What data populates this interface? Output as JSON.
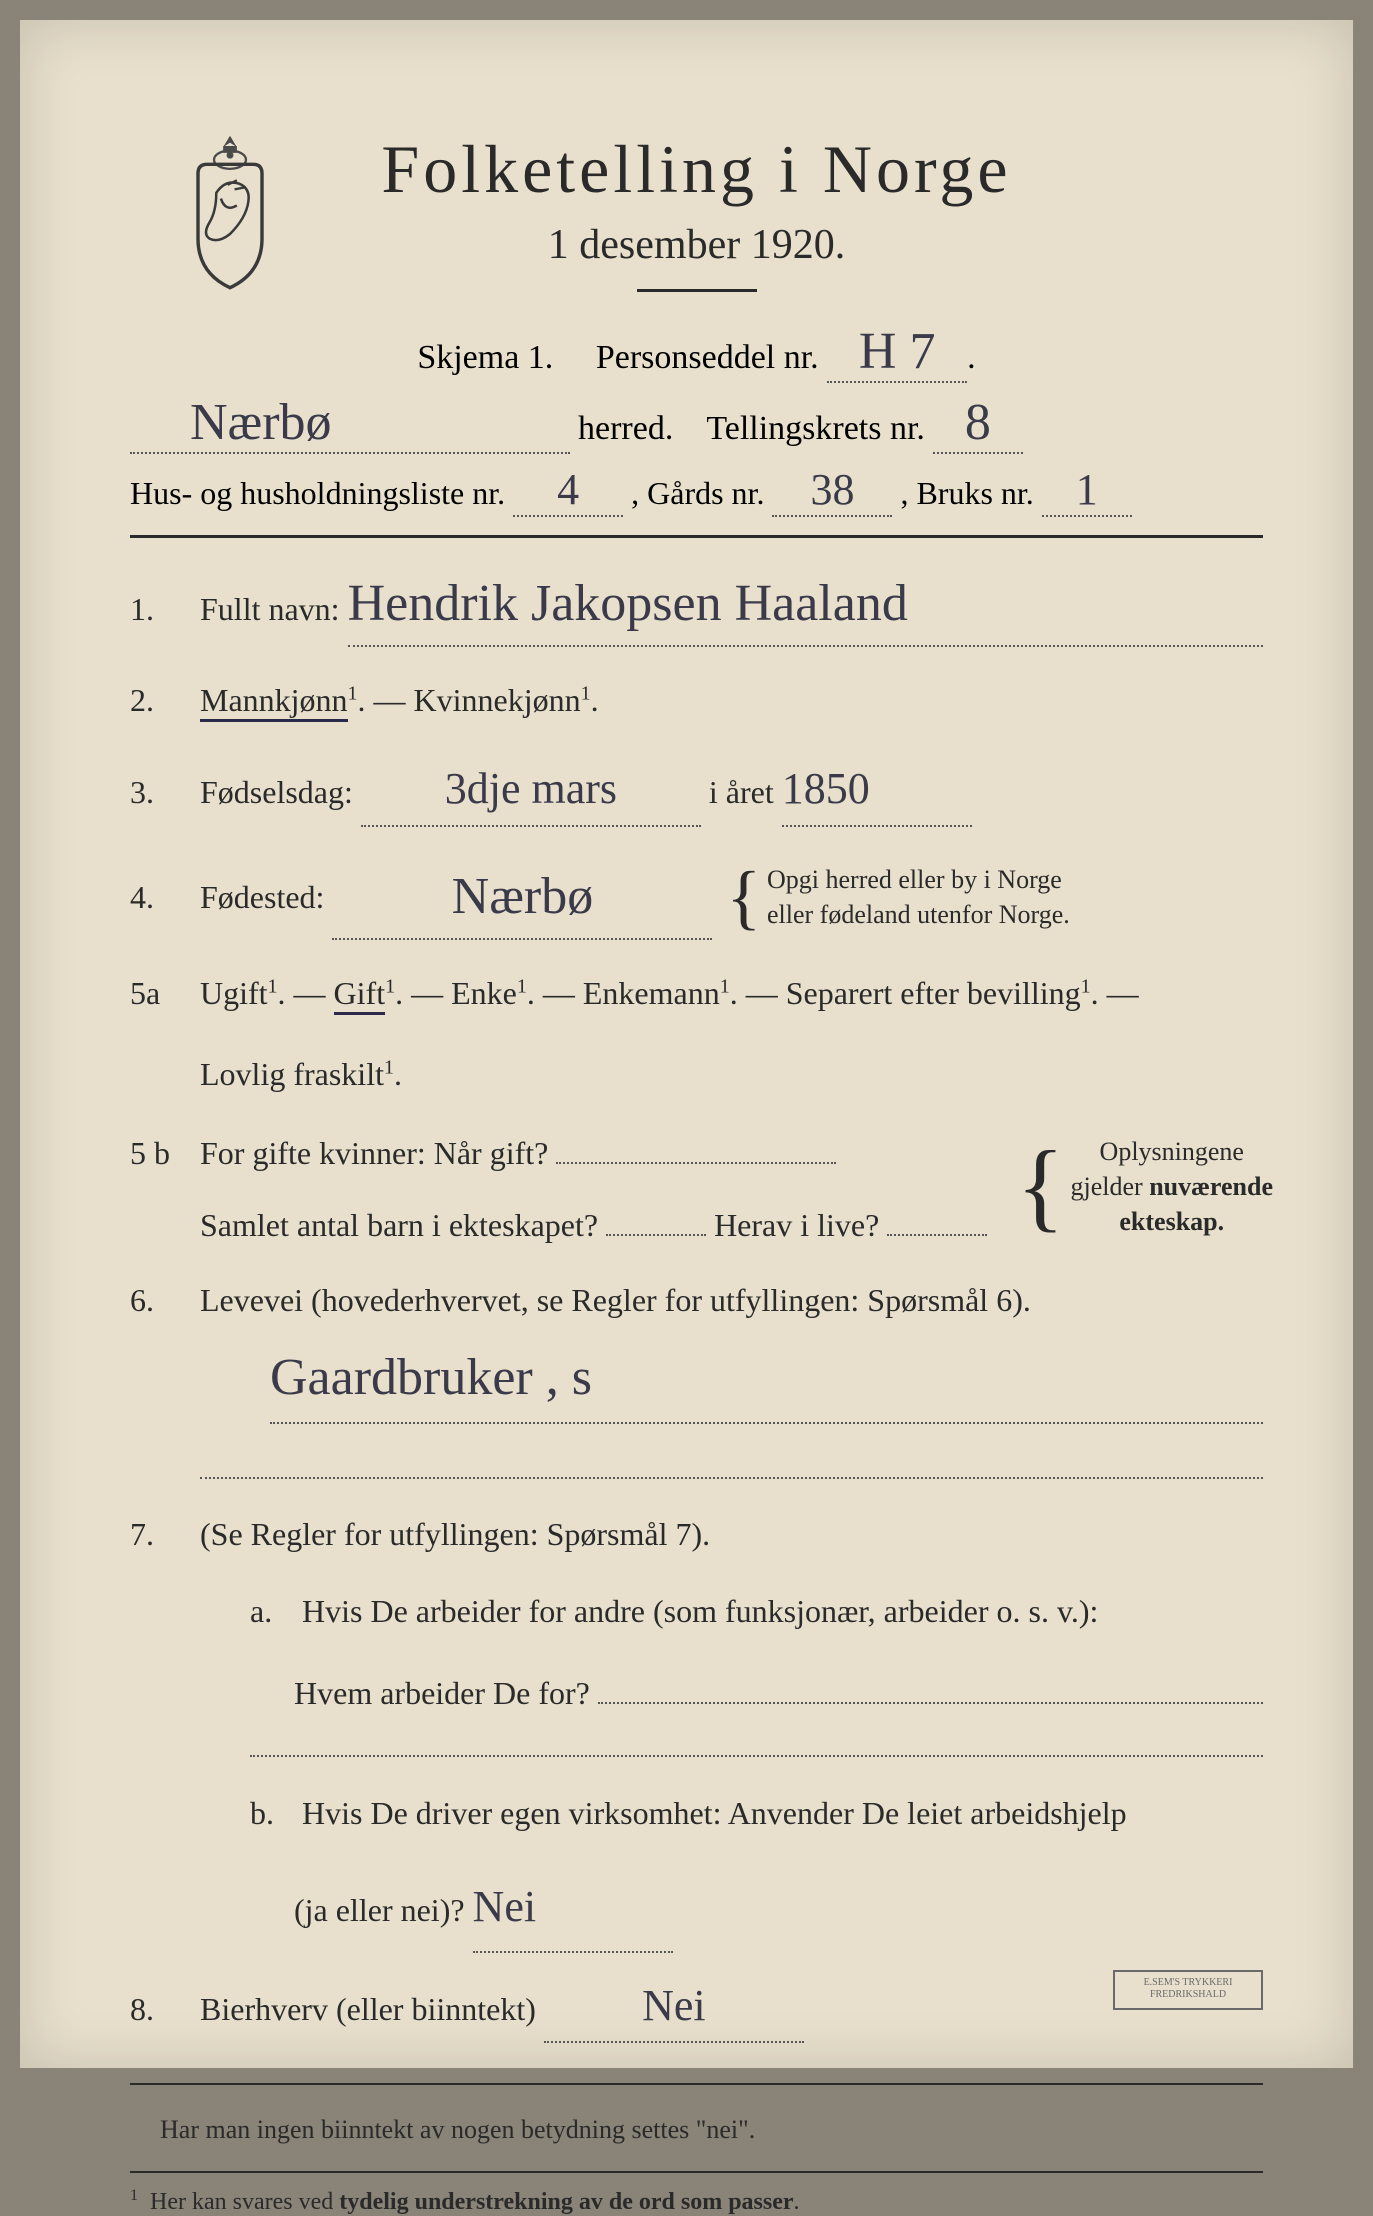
{
  "colors": {
    "paper": "#e8e0cc",
    "ink": "#2a2a2a",
    "handwriting": "#3a3a4a",
    "background": "#8a8378"
  },
  "header": {
    "title": "Folketelling i Norge",
    "subtitle": "1 desember 1920."
  },
  "skjema": {
    "label_left": "Skjema 1.",
    "label_right": "Personseddel nr.",
    "nr": "H 7"
  },
  "herred": {
    "name": "Nærbø",
    "label": "herred.",
    "krets_label": "Tellingskrets nr.",
    "krets": "8"
  },
  "hus": {
    "label1": "Hus- og husholdningsliste nr.",
    "hus_nr": "4",
    "label2": ",  Gårds nr.",
    "gards_nr": "38",
    "label3": ",  Bruks nr.",
    "bruks_nr": "1"
  },
  "q1": {
    "num": "1.",
    "label": "Fullt navn:",
    "value": "Hendrik Jakopsen Haaland"
  },
  "q2": {
    "num": "2.",
    "text_a": "Mannkjønn",
    "dash": " — ",
    "text_b": "Kvinnekjønn"
  },
  "q3": {
    "num": "3.",
    "label": "Fødselsdag:",
    "day": "3dje mars",
    "mid": "i året",
    "year": "1850"
  },
  "q4": {
    "num": "4.",
    "label": "Fødested:",
    "value": "Nærbø",
    "note1": "Opgi herred eller by i Norge",
    "note2": "eller fødeland utenfor Norge."
  },
  "q5a": {
    "num": "5a",
    "opts": [
      "Ugift",
      "Gift",
      "Enke",
      "Enkemann",
      "Separert efter bevilling"
    ],
    "cont": "Lovlig fraskilt"
  },
  "q5b": {
    "num": "5 b",
    "l1a": "For gifte kvinner:  Når gift?",
    "l2a": "Samlet antal barn i ekteskapet?",
    "l2b": "Herav i live?",
    "note1": "Oplysningene",
    "note2": "gjelder nuværende",
    "note3": "ekteskap."
  },
  "q6": {
    "num": "6.",
    "label": "Levevei  (hovederhvervet, se Regler for utfyllingen:   Spørsmål 6).",
    "value": "Gaardbruker , s"
  },
  "q7": {
    "num": "7.",
    "intro": "(Se Regler for utfyllingen:   Spørsmål 7).",
    "a1": "Hvis De arbeider for andre (som funksjonær, arbeider o. s. v.):",
    "a2": "Hvem arbeider De for?",
    "b1": "Hvis De driver egen virksomhet:   Anvender De leiet arbeidshjelp",
    "b2": "(ja eller nei)?",
    "b_val": "Nei"
  },
  "q8": {
    "num": "8.",
    "label": "Bierhverv (eller biinntekt)",
    "value": "Nei"
  },
  "footer_note": "Har man ingen biinntekt av nogen betydning settes \"nei\".",
  "footnote": "Her kan svares ved tydelig understrekning av de ord som passer.",
  "stamp": {
    "l1": "E.SEM'S TRYKKERI",
    "l2": "FREDRIKSHALD"
  }
}
